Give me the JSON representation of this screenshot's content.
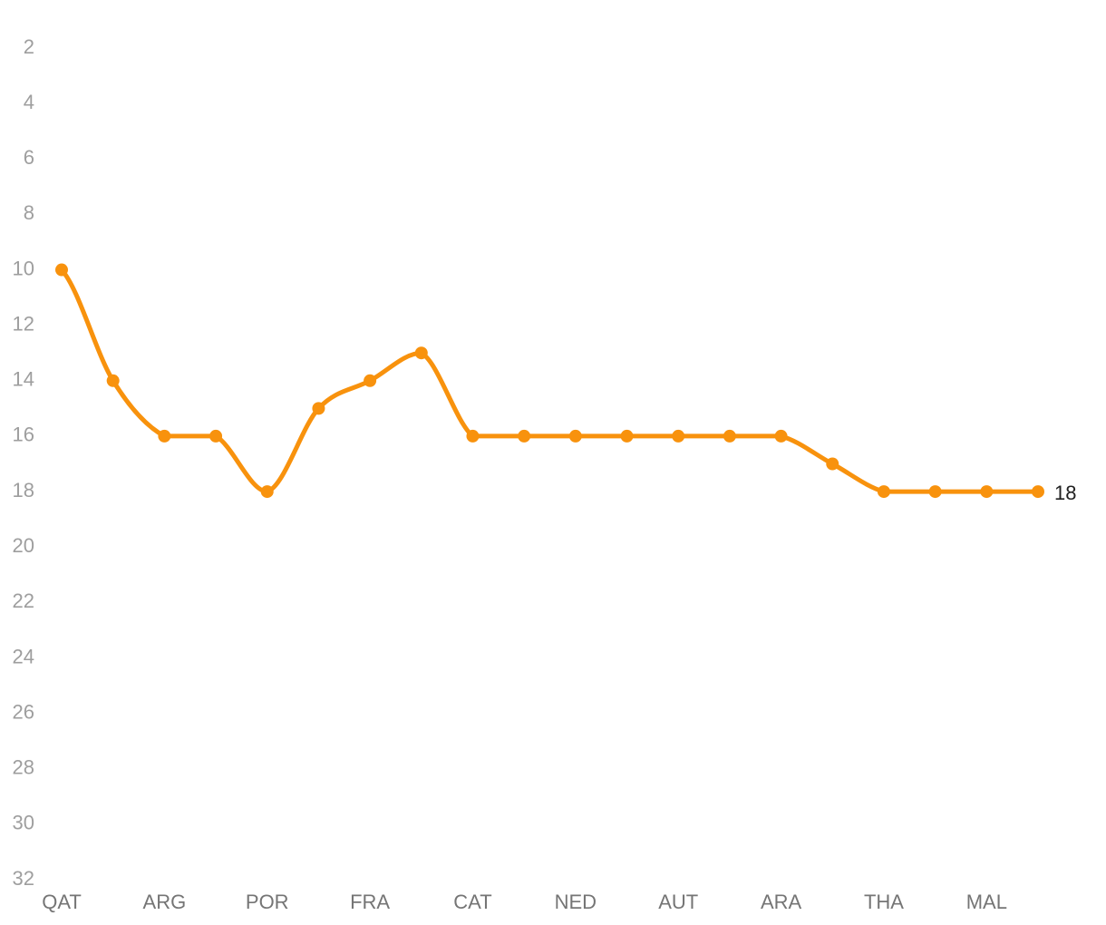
{
  "chart_data": {
    "type": "line",
    "categories": [
      "QAT",
      null,
      "ARG",
      null,
      "POR",
      null,
      "FRA",
      null,
      "CAT",
      null,
      "NED",
      null,
      "AUT",
      null,
      "ARA",
      null,
      "THA",
      null,
      "MAL",
      null
    ],
    "values": [
      10,
      14,
      16,
      16,
      18,
      15,
      14,
      13,
      16,
      16,
      16,
      16,
      16,
      16,
      16,
      17,
      18,
      18,
      18,
      18
    ],
    "color": "#f8920d",
    "ylim": [
      2,
      32
    ],
    "y_reversed": true,
    "yticks": [
      2,
      4,
      6,
      8,
      10,
      12,
      14,
      16,
      18,
      20,
      22,
      24,
      26,
      28,
      30,
      32
    ],
    "grid": false,
    "smooth": true,
    "last_value_label": true
  }
}
